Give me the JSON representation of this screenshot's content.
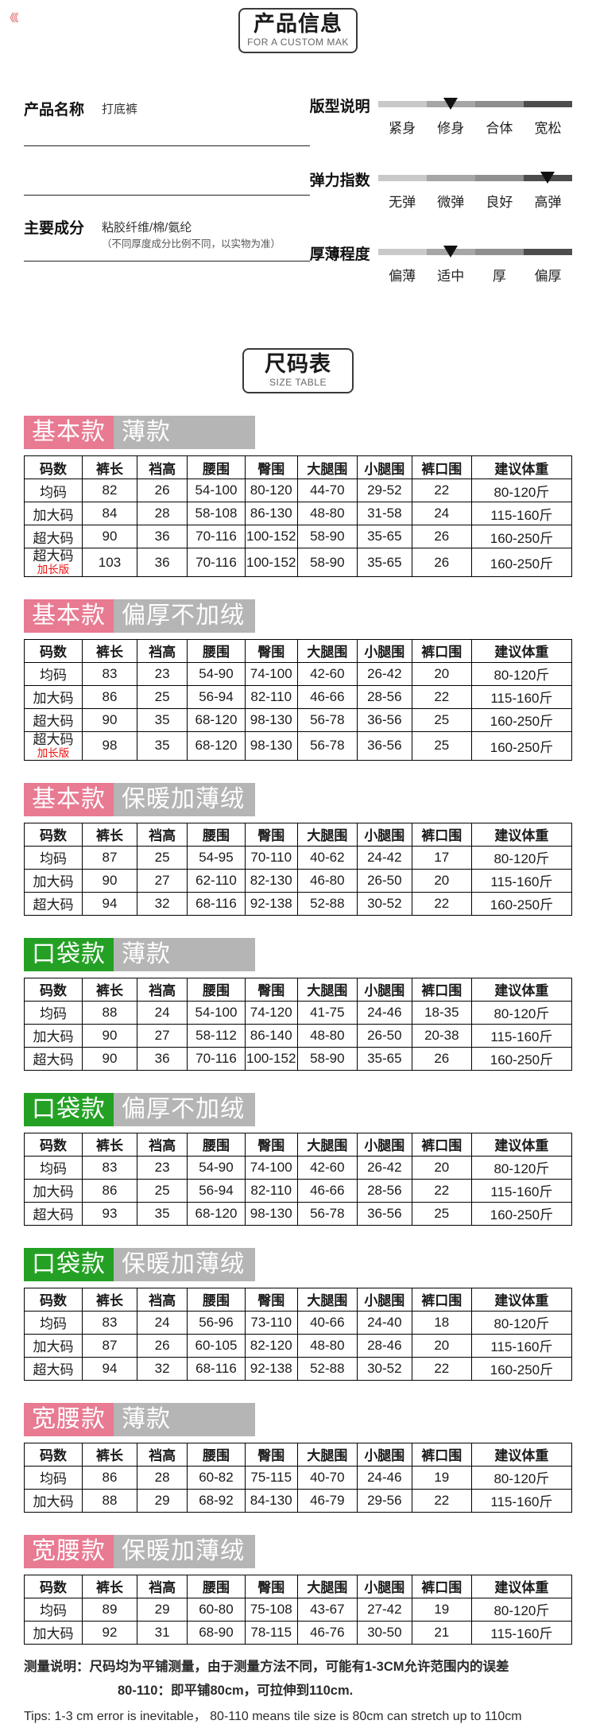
{
  "corner_marks": "《《",
  "header": {
    "title": "产品信息",
    "subtitle": "FOR A CUSTOM MAK"
  },
  "product": {
    "name_label": "产品名称",
    "name_value": "打底裤",
    "composition_label": "主要成分",
    "composition_value": "粘胶纤维/棉/氨纶",
    "composition_note": "（不同厚度成分比例不同，以实物为准）"
  },
  "sliders": [
    {
      "label": "版型说明",
      "options": [
        "紧身",
        "修身",
        "合体",
        "宽松"
      ],
      "marker_index": 1
    },
    {
      "label": "弹力指数",
      "options": [
        "无弹",
        "微弹",
        "良好",
        "高弹"
      ],
      "marker_index": 3
    },
    {
      "label": "厚薄程度",
      "options": [
        "偏薄",
        "适中",
        "厚",
        "偏厚"
      ],
      "marker_index": 1
    }
  ],
  "size_header": {
    "title": "尺码表",
    "subtitle": "SIZE TABLE"
  },
  "columns": [
    "码数",
    "裤长",
    "裆高",
    "腰围",
    "臀围",
    "大腿围",
    "小腿围",
    "裤口围",
    "建议体重"
  ],
  "col_widths_percent": [
    10.6,
    10.0,
    9.2,
    10.5,
    9.6,
    10.9,
    10.0,
    10.9,
    18.3
  ],
  "tables": [
    {
      "tag": "基本款",
      "tag_color": "pink",
      "variant": "薄款",
      "rows": [
        {
          "size": "均码",
          "values": [
            "82",
            "26",
            "54-100",
            "80-120",
            "44-70",
            "29-52",
            "22",
            "80-120斤"
          ]
        },
        {
          "size": "加大码",
          "values": [
            "84",
            "28",
            "58-108",
            "86-130",
            "48-80",
            "31-58",
            "24",
            "115-160斤"
          ]
        },
        {
          "size": "超大码",
          "values": [
            "90",
            "36",
            "70-116",
            "100-152",
            "58-90",
            "35-65",
            "26",
            "160-250斤"
          ]
        },
        {
          "size": "超大码",
          "size_note": "加长版",
          "values": [
            "103",
            "36",
            "70-116",
            "100-152",
            "58-90",
            "35-65",
            "26",
            "160-250斤"
          ]
        }
      ]
    },
    {
      "tag": "基本款",
      "tag_color": "pink",
      "variant": "偏厚不加绒",
      "rows": [
        {
          "size": "均码",
          "values": [
            "83",
            "23",
            "54-90",
            "74-100",
            "42-60",
            "26-42",
            "20",
            "80-120斤"
          ]
        },
        {
          "size": "加大码",
          "values": [
            "86",
            "25",
            "56-94",
            "82-110",
            "46-66",
            "28-56",
            "22",
            "115-160斤"
          ]
        },
        {
          "size": "超大码",
          "values": [
            "90",
            "35",
            "68-120",
            "98-130",
            "56-78",
            "36-56",
            "25",
            "160-250斤"
          ]
        },
        {
          "size": "超大码",
          "size_note": "加长版",
          "values": [
            "98",
            "35",
            "68-120",
            "98-130",
            "56-78",
            "36-56",
            "25",
            "160-250斤"
          ]
        }
      ]
    },
    {
      "tag": "基本款",
      "tag_color": "pink",
      "variant": "保暖加薄绒",
      "rows": [
        {
          "size": "均码",
          "values": [
            "87",
            "25",
            "54-95",
            "70-110",
            "40-62",
            "24-42",
            "17",
            "80-120斤"
          ]
        },
        {
          "size": "加大码",
          "values": [
            "90",
            "27",
            "62-110",
            "82-130",
            "46-80",
            "26-50",
            "20",
            "115-160斤"
          ]
        },
        {
          "size": "超大码",
          "values": [
            "94",
            "32",
            "68-116",
            "92-138",
            "52-88",
            "30-52",
            "22",
            "160-250斤"
          ]
        }
      ]
    },
    {
      "tag": "口袋款",
      "tag_color": "green",
      "variant": "薄款",
      "rows": [
        {
          "size": "均码",
          "values": [
            "88",
            "24",
            "54-100",
            "74-120",
            "41-75",
            "24-46",
            "18-35",
            "80-120斤"
          ]
        },
        {
          "size": "加大码",
          "values": [
            "90",
            "27",
            "58-112",
            "86-140",
            "48-80",
            "26-50",
            "20-38",
            "115-160斤"
          ]
        },
        {
          "size": "超大码",
          "values": [
            "90",
            "36",
            "70-116",
            "100-152",
            "58-90",
            "35-65",
            "26",
            "160-250斤"
          ]
        }
      ]
    },
    {
      "tag": "口袋款",
      "tag_color": "green",
      "variant": "偏厚不加绒",
      "rows": [
        {
          "size": "均码",
          "values": [
            "83",
            "23",
            "54-90",
            "74-100",
            "42-60",
            "26-42",
            "20",
            "80-120斤"
          ]
        },
        {
          "size": "加大码",
          "values": [
            "86",
            "25",
            "56-94",
            "82-110",
            "46-66",
            "28-56",
            "22",
            "115-160斤"
          ]
        },
        {
          "size": "超大码",
          "values": [
            "93",
            "35",
            "68-120",
            "98-130",
            "56-78",
            "36-56",
            "25",
            "160-250斤"
          ]
        }
      ]
    },
    {
      "tag": "口袋款",
      "tag_color": "green",
      "variant": "保暖加薄绒",
      "rows": [
        {
          "size": "均码",
          "values": [
            "83",
            "24",
            "56-96",
            "73-110",
            "40-66",
            "24-40",
            "18",
            "80-120斤"
          ]
        },
        {
          "size": "加大码",
          "values": [
            "87",
            "26",
            "60-105",
            "82-120",
            "48-80",
            "28-46",
            "20",
            "115-160斤"
          ]
        },
        {
          "size": "超大码",
          "values": [
            "94",
            "32",
            "68-116",
            "92-138",
            "52-88",
            "30-52",
            "22",
            "160-250斤"
          ]
        }
      ]
    },
    {
      "tag": "宽腰款",
      "tag_color": "pink",
      "variant": "薄款",
      "rows": [
        {
          "size": "均码",
          "values": [
            "86",
            "28",
            "60-82",
            "75-115",
            "40-70",
            "24-46",
            "19",
            "80-120斤"
          ]
        },
        {
          "size": "加大码",
          "values": [
            "88",
            "29",
            "68-92",
            "84-130",
            "46-79",
            "29-56",
            "22",
            "115-160斤"
          ]
        }
      ]
    },
    {
      "tag": "宽腰款",
      "tag_color": "pink",
      "variant": "保暖加薄绒",
      "rows": [
        {
          "size": "均码",
          "values": [
            "89",
            "29",
            "60-80",
            "75-108",
            "43-67",
            "27-42",
            "19",
            "80-120斤"
          ]
        },
        {
          "size": "加大码",
          "values": [
            "92",
            "31",
            "68-90",
            "78-115",
            "46-76",
            "30-50",
            "21",
            "115-160斤"
          ]
        }
      ]
    }
  ],
  "footer": {
    "line1": "测量说明：尺码均为平铺测量，由于测量方法不同，可能有1-3CM允许范围内的误差",
    "line2": "80-110：即平铺80cm，可拉伸到110cm.",
    "line3": "Tips: 1-3 cm error is inevitable，    80-110 means tile size is 80cm can stretch up to 110cm"
  },
  "colors": {
    "pink": "#e87a92",
    "green": "#24a124",
    "tag_gray": "#b5b5b5",
    "red_note": "#ee1111",
    "bar_segments": [
      "#c9c9c9",
      "#a6a6a6",
      "#8f8f8f",
      "#4d4d4d"
    ]
  }
}
